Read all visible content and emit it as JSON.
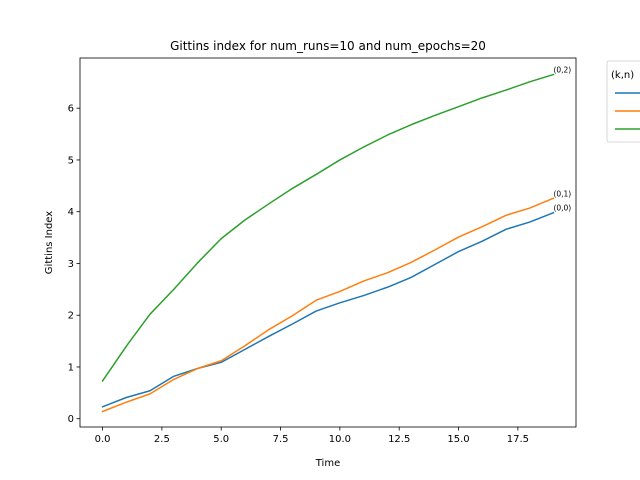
{
  "chart_data": {
    "type": "line",
    "title": "Gittins index for num_runs=10 and num_epochs=20",
    "xlabel": "Time",
    "ylabel": "Gittins Index",
    "xlim": [
      -0.95,
      19.95
    ],
    "ylim": [
      -0.16,
      6.97
    ],
    "x_ticks": [
      0.0,
      2.5,
      5.0,
      7.5,
      10.0,
      12.5,
      15.0,
      17.5
    ],
    "x_tick_labels": [
      "0.0",
      "2.5",
      "5.0",
      "7.5",
      "10.0",
      "12.5",
      "15.0",
      "17.5"
    ],
    "y_ticks": [
      0,
      1,
      2,
      3,
      4,
      5,
      6
    ],
    "y_tick_labels": [
      "0",
      "1",
      "2",
      "3",
      "4",
      "5",
      "6"
    ],
    "x": [
      0,
      1,
      2,
      3,
      4,
      5,
      6,
      7,
      8,
      9,
      10,
      11,
      12,
      13,
      14,
      15,
      16,
      17,
      18,
      19
    ],
    "legend": {
      "title": "(k,n)",
      "placement": "outside-right"
    },
    "series": [
      {
        "key": "blue",
        "label": "(0,0)",
        "color": "#1f77b4",
        "values": [
          0.23,
          0.41,
          0.54,
          0.82,
          0.97,
          1.09,
          1.34,
          1.59,
          1.83,
          2.08,
          2.24,
          2.38,
          2.54,
          2.73,
          2.98,
          3.23,
          3.43,
          3.66,
          3.8,
          3.98
        ]
      },
      {
        "key": "orange",
        "label": "(0,1)",
        "color": "#ff7f0e",
        "values": [
          0.14,
          0.32,
          0.48,
          0.76,
          0.97,
          1.12,
          1.41,
          1.72,
          1.99,
          2.29,
          2.46,
          2.66,
          2.82,
          3.02,
          3.26,
          3.51,
          3.71,
          3.93,
          4.07,
          4.26
        ]
      },
      {
        "key": "green",
        "label": "(0,2)",
        "color": "#2ca02c",
        "values": [
          0.73,
          1.4,
          2.02,
          2.5,
          3.01,
          3.48,
          3.84,
          4.15,
          4.45,
          4.72,
          5.0,
          5.25,
          5.48,
          5.68,
          5.86,
          6.03,
          6.2,
          6.35,
          6.51,
          6.65
        ]
      }
    ]
  }
}
